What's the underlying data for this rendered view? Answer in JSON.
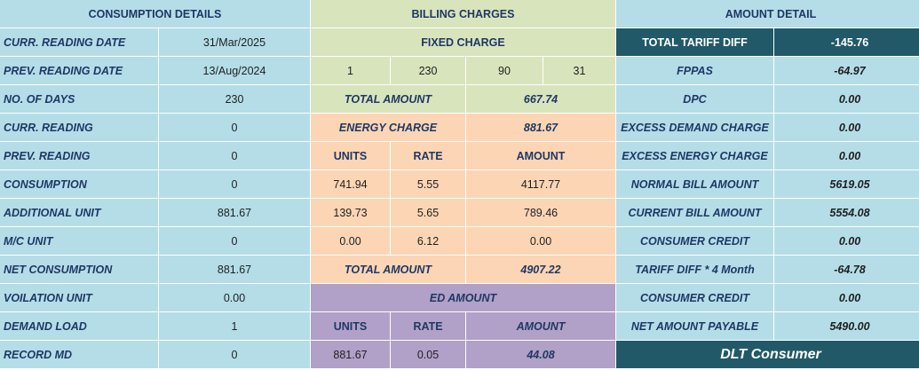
{
  "colors": {
    "blue": "#b4dde8",
    "green": "#d8e4bc",
    "peach": "#fcd5b4",
    "purple": "#b1a0c7",
    "dark_teal": "#215968",
    "navy_text": "#1f3864"
  },
  "consumption": {
    "header": "CONSUMPTION DETAILS",
    "rows": [
      {
        "label": "CURR. READING DATE",
        "value": "31/Mar/2025"
      },
      {
        "label": "PREV. READING DATE",
        "value": "13/Aug/2024"
      },
      {
        "label": "NO. OF DAYS",
        "value": "230"
      },
      {
        "label": "CURR. READING",
        "value": "0"
      },
      {
        "label": "PREV. READING",
        "value": "0"
      },
      {
        "label": "CONSUMPTION",
        "value": "0"
      },
      {
        "label": "ADDITIONAL UNIT",
        "value": "881.67"
      },
      {
        "label": "M/C UNIT",
        "value": "0"
      },
      {
        "label": "NET CONSUMPTION",
        "value": "881.67"
      },
      {
        "label": "VOILATION UNIT",
        "value": "0.00"
      },
      {
        "label": "DEMAND LOAD",
        "value": "1"
      },
      {
        "label": "RECORD MD",
        "value": "0"
      }
    ]
  },
  "billing": {
    "header": "BILLING CHARGES",
    "fixed": {
      "header": "FIXED CHARGE",
      "values": [
        "1",
        "230",
        "90",
        "31"
      ],
      "total_label": "TOTAL AMOUNT",
      "total_value": "667.74"
    },
    "energy": {
      "header_label": "ENERGY CHARGE",
      "header_value": "881.67",
      "cols": [
        "UNITS",
        "RATE",
        "AMOUNT"
      ],
      "rows": [
        {
          "units": "741.94",
          "rate": "5.55",
          "amount": "4117.77"
        },
        {
          "units": "139.73",
          "rate": "5.65",
          "amount": "789.46"
        },
        {
          "units": "0.00",
          "rate": "6.12",
          "amount": "0.00"
        }
      ],
      "total_label": "TOTAL AMOUNT",
      "total_value": "4907.22"
    },
    "ed": {
      "header": "ED AMOUNT",
      "cols": [
        "UNITS",
        "RATE",
        "AMOUNT"
      ],
      "row": {
        "units": "881.67",
        "rate": "0.05",
        "amount": "44.08"
      }
    }
  },
  "amount": {
    "header": "AMOUNT DETAIL",
    "total_tariff_label": "TOTAL TARIFF DIFF",
    "total_tariff_value": "-145.76",
    "rows": [
      {
        "label": "FPPAS",
        "value": "-64.97"
      },
      {
        "label": "DPC",
        "value": "0.00"
      },
      {
        "label": "EXCESS DEMAND CHARGE",
        "value": "0.00"
      },
      {
        "label": "EXCESS ENERGY CHARGE",
        "value": "0.00"
      },
      {
        "label": "NORMAL BILL AMOUNT",
        "value": "5619.05"
      },
      {
        "label": "CURRENT BILL AMOUNT",
        "value": "5554.08"
      },
      {
        "label": "CONSUMER CREDIT",
        "value": "0.00"
      },
      {
        "label": "TARIFF DIFF * 4 Month",
        "value": "-64.78"
      },
      {
        "label": "CONSUMER CREDIT",
        "value": "0.00"
      },
      {
        "label": "NET AMOUNT PAYABLE",
        "value": "5490.00"
      }
    ],
    "footer": "DLT Consumer"
  }
}
